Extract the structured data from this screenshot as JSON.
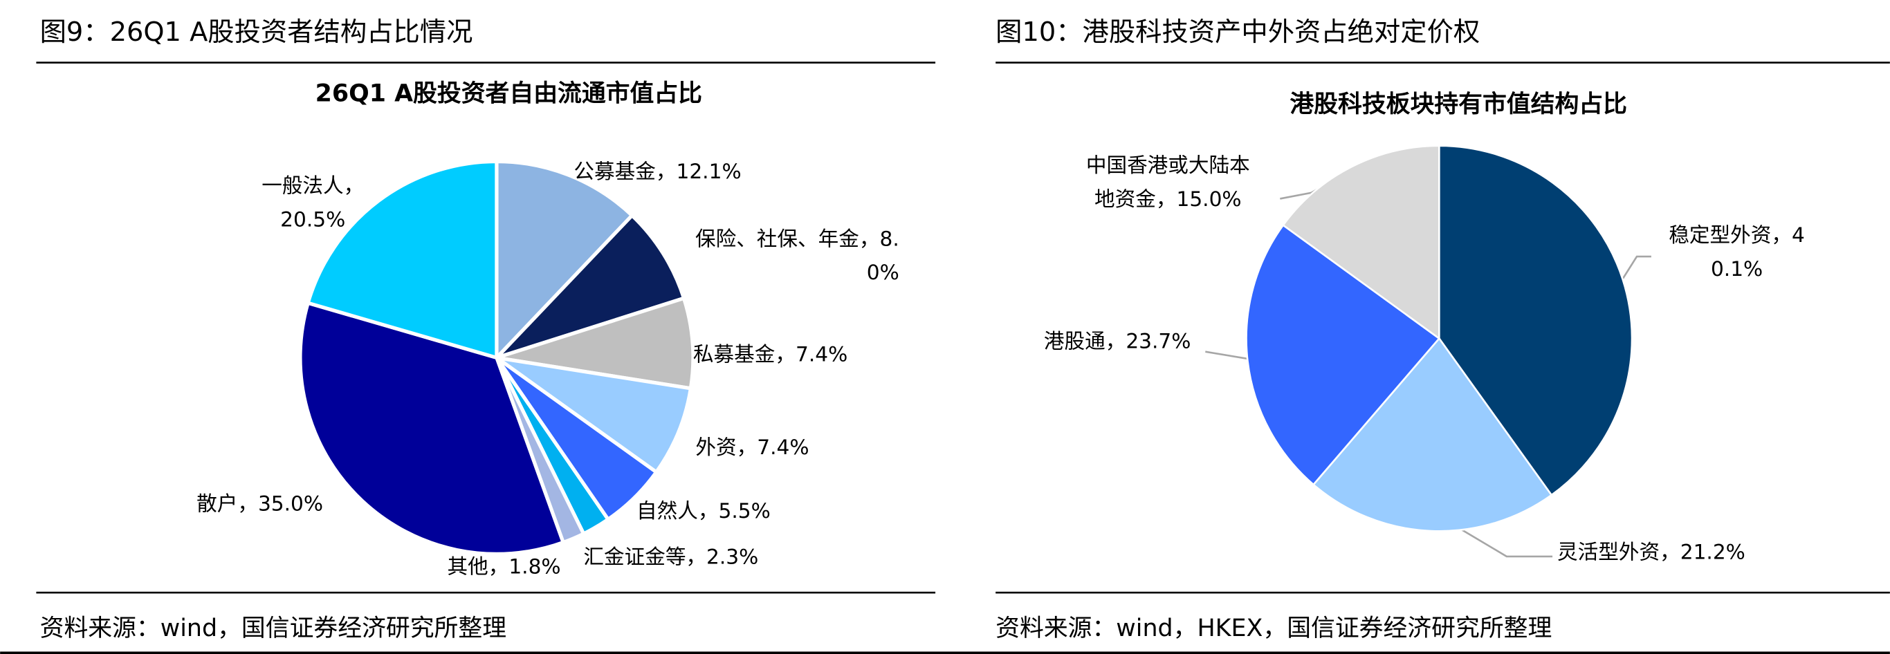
{
  "chart_data": [
    {
      "type": "pie",
      "caption": "图9：26Q1 A股投资者结构占比情况",
      "title": "26Q1 A股投资者自由流通市值占比",
      "categories": [
        "公募基金，",
        "保险、社保、年金，",
        "私募基金，",
        "外资，",
        "自然人，",
        "汇金证金等，",
        "其他，",
        "散户，",
        "一般法人，"
      ],
      "values": [
        12.1,
        8.0,
        7.4,
        7.4,
        5.5,
        2.3,
        1.8,
        35.0,
        20.5
      ],
      "value_labels": [
        "12.1%",
        "8.0%",
        "7.4%",
        "7.4%",
        "5.5%",
        "2.3%",
        "1.8%",
        "35.0%",
        "20.5%"
      ],
      "colors": [
        "#8db4e2",
        "#0a1f5c",
        "#bfbfbf",
        "#99ccff",
        "#3366ff",
        "#00b0f0",
        "#a3b6e3",
        "#000099",
        "#00ccff"
      ],
      "source": "资料来源：wind，国信证券经济研究所整理"
    },
    {
      "type": "pie",
      "caption": "图10：港股科技资产中外资占绝对定价权",
      "title": "港股科技板块持有市值结构占比",
      "categories": [
        "稳定型外资，",
        "灵活型外资，",
        "港股通，",
        "中国香港或大陆本地资金，"
      ],
      "values": [
        40.1,
        21.2,
        23.7,
        15.0
      ],
      "value_labels": [
        "40.1%",
        "21.2%",
        "23.7%",
        "15.0%"
      ],
      "colors": [
        "#003f72",
        "#99ccff",
        "#3366ff",
        "#d9d9d9"
      ],
      "source": "资料来源：wind，HKEX，国信证券经济研究所整理"
    }
  ]
}
